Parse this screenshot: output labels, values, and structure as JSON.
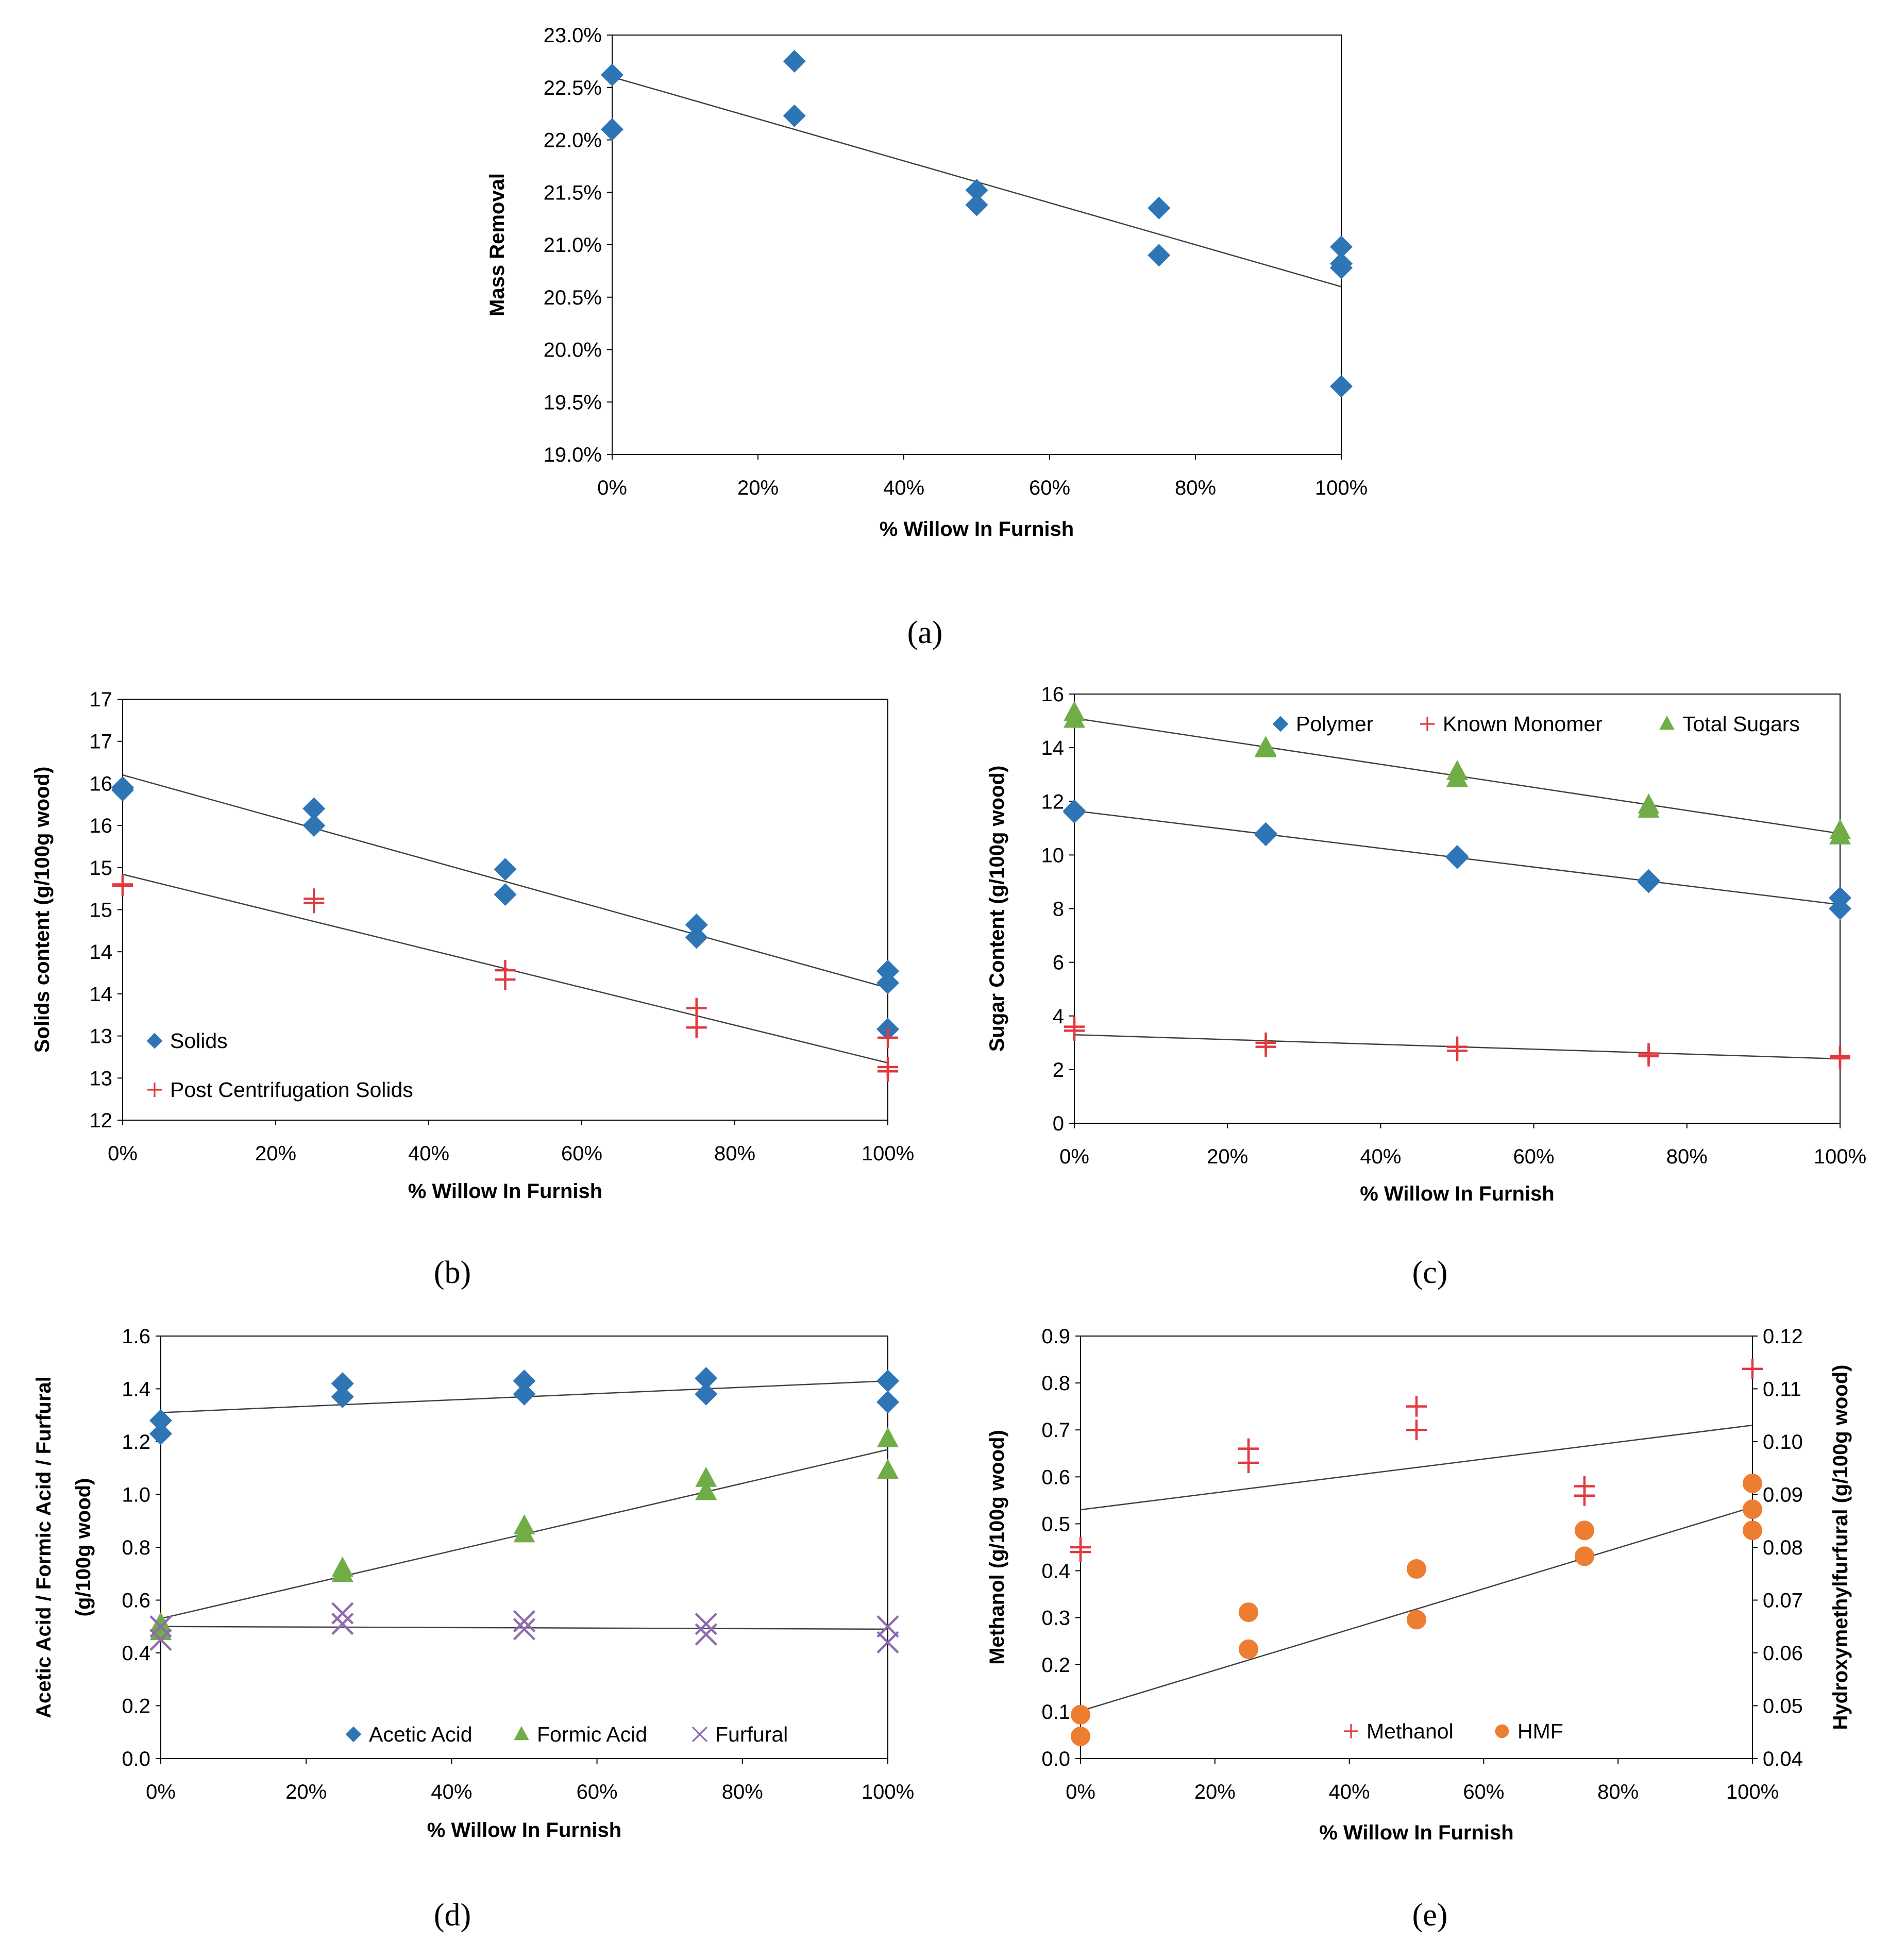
{
  "colors": {
    "blue": "#2E75B6",
    "red": "#E0393E",
    "green": "#70AD47",
    "purple": "#8E6AAE",
    "orange": "#ED7D31",
    "line": "#404040",
    "frame": "#000000"
  },
  "chart_data": [
    {
      "id": "a",
      "panel_label": "(a)",
      "type": "scatter",
      "xlabel": "% Willow In Furnish",
      "ylabel": "Mass Removal",
      "xlim": [
        0,
        100
      ],
      "ylim": [
        19.0,
        23.0
      ],
      "xticks": [
        0,
        20,
        40,
        60,
        80,
        100
      ],
      "xtick_labels": [
        "0%",
        "20%",
        "40%",
        "60%",
        "80%",
        "100%"
      ],
      "yticks": [
        19.0,
        19.5,
        20.0,
        20.5,
        21.0,
        21.5,
        22.0,
        22.5,
        23.0
      ],
      "ytick_labels": [
        "19.0%",
        "19.5%",
        "20.0%",
        "20.5%",
        "21.0%",
        "21.5%",
        "22.0%",
        "22.5%",
        "23.0%"
      ],
      "legend": [],
      "series": [
        {
          "name": "Mass Removal",
          "marker": "diamond",
          "color_key": "blue",
          "points": [
            [
              0,
              22.62
            ],
            [
              0,
              22.1
            ],
            [
              25,
              22.75
            ],
            [
              25,
              22.23
            ],
            [
              50,
              21.52
            ],
            [
              50,
              21.38
            ],
            [
              75,
              21.35
            ],
            [
              75,
              20.9
            ],
            [
              100,
              20.98
            ],
            [
              100,
              20.82
            ],
            [
              100,
              20.78
            ],
            [
              100,
              19.65
            ]
          ],
          "trend": [
            [
              0,
              22.6
            ],
            [
              100,
              20.6
            ]
          ]
        }
      ]
    },
    {
      "id": "b",
      "panel_label": "(b)",
      "type": "scatter",
      "xlabel": "% Willow In Furnish",
      "ylabel": "Solids content (g/100g wood)",
      "xlim": [
        0,
        100
      ],
      "ylim": [
        12,
        17
      ],
      "xticks": [
        0,
        20,
        40,
        60,
        80,
        100
      ],
      "xtick_labels": [
        "0%",
        "20%",
        "40%",
        "60%",
        "80%",
        "100%"
      ],
      "yticks": [
        12,
        12.5,
        13,
        13.5,
        14,
        14.5,
        15,
        15.5,
        16,
        16.5,
        17
      ],
      "ytick_labels": [
        "12",
        "13",
        "13",
        "14",
        "14",
        "15",
        "15",
        "16",
        "16",
        "17",
        "17"
      ],
      "legend": [
        "Solids",
        "Post Centrifugation Solids"
      ],
      "series": [
        {
          "name": "Solids",
          "marker": "diamond",
          "color_key": "blue",
          "points": [
            [
              0,
              15.95
            ],
            [
              0,
              15.92
            ],
            [
              25,
              15.7
            ],
            [
              25,
              15.5
            ],
            [
              50,
              14.98
            ],
            [
              50,
              14.68
            ],
            [
              75,
              14.32
            ],
            [
              75,
              14.17
            ],
            [
              100,
              13.77
            ],
            [
              100,
              13.63
            ],
            [
              100,
              13.08
            ]
          ],
          "trend": [
            [
              0,
              16.1
            ],
            [
              100,
              13.57
            ]
          ]
        },
        {
          "name": "Post Centrifugation Solids",
          "marker": "plus",
          "color_key": "red",
          "points": [
            [
              0,
              14.8
            ],
            [
              0,
              14.78
            ],
            [
              25,
              14.63
            ],
            [
              25,
              14.58
            ],
            [
              50,
              13.78
            ],
            [
              50,
              13.67
            ],
            [
              75,
              13.33
            ],
            [
              75,
              13.1
            ],
            [
              100,
              12.98
            ],
            [
              100,
              12.63
            ],
            [
              100,
              12.58
            ]
          ],
          "trend": [
            [
              0,
              14.92
            ],
            [
              100,
              12.68
            ]
          ]
        }
      ]
    },
    {
      "id": "c",
      "panel_label": "(c)",
      "type": "scatter",
      "xlabel": "% Willow In Furnish",
      "ylabel": "Sugar Content (g/100g wood)",
      "xlim": [
        0,
        100
      ],
      "ylim": [
        0,
        16
      ],
      "xticks": [
        0,
        20,
        40,
        60,
        80,
        100
      ],
      "xtick_labels": [
        "0%",
        "20%",
        "40%",
        "60%",
        "80%",
        "100%"
      ],
      "yticks": [
        0,
        2,
        4,
        6,
        8,
        10,
        12,
        14,
        16
      ],
      "ytick_labels": [
        "0",
        "2",
        "4",
        "6",
        "8",
        "10",
        "12",
        "14",
        "16"
      ],
      "legend": [
        "Polymer",
        "Known Monomer",
        "Total Sugars"
      ],
      "series": [
        {
          "name": "Polymer",
          "marker": "diamond",
          "color_key": "blue",
          "points": [
            [
              0,
              11.65
            ],
            [
              0,
              11.6
            ],
            [
              25,
              10.8
            ],
            [
              25,
              10.75
            ],
            [
              50,
              9.95
            ],
            [
              50,
              9.9
            ],
            [
              75,
              9.05
            ],
            [
              75,
              9.0
            ],
            [
              100,
              8.4
            ],
            [
              100,
              8.0
            ]
          ],
          "trend": [
            [
              0,
              11.65
            ],
            [
              100,
              8.15
            ]
          ]
        },
        {
          "name": "Known Monomer",
          "marker": "plus",
          "color_key": "red",
          "points": [
            [
              0,
              3.6
            ],
            [
              0,
              3.45
            ],
            [
              25,
              3.0
            ],
            [
              25,
              2.85
            ],
            [
              50,
              2.85
            ],
            [
              50,
              2.7
            ],
            [
              75,
              2.6
            ],
            [
              75,
              2.5
            ],
            [
              100,
              2.5
            ],
            [
              100,
              2.42
            ]
          ],
          "trend": [
            [
              0,
              3.3
            ],
            [
              100,
              2.4
            ]
          ]
        },
        {
          "name": "Total Sugars",
          "marker": "triangle",
          "color_key": "green",
          "points": [
            [
              0,
              15.3
            ],
            [
              0,
              15.05
            ],
            [
              25,
              14.0
            ],
            [
              25,
              13.95
            ],
            [
              50,
              13.1
            ],
            [
              50,
              12.85
            ],
            [
              75,
              11.85
            ],
            [
              75,
              11.7
            ],
            [
              100,
              10.9
            ],
            [
              100,
              10.7
            ]
          ],
          "trend": [
            [
              0,
              15.1
            ],
            [
              100,
              10.8
            ]
          ]
        }
      ]
    },
    {
      "id": "d",
      "panel_label": "(d)",
      "type": "scatter",
      "xlabel": "% Willow In Furnish",
      "ylabel": "Acetic Acid / Formic Acid / Furfural",
      "ylabel2": "(g/100g wood)",
      "xlim": [
        0,
        100
      ],
      "ylim": [
        0,
        1.6
      ],
      "xticks": [
        0,
        20,
        40,
        60,
        80,
        100
      ],
      "xtick_labels": [
        "0%",
        "20%",
        "40%",
        "60%",
        "80%",
        "100%"
      ],
      "yticks": [
        0,
        0.2,
        0.4,
        0.6,
        0.8,
        1.0,
        1.2,
        1.4,
        1.6
      ],
      "ytick_labels": [
        "0.0",
        "0.2",
        "0.4",
        "0.6",
        "0.8",
        "1.0",
        "1.2",
        "1.4",
        "1.6"
      ],
      "legend": [
        "Acetic Acid",
        "Formic Acid",
        "Furfural"
      ],
      "series": [
        {
          "name": "Acetic Acid",
          "marker": "diamond",
          "color_key": "blue",
          "points": [
            [
              0,
              1.28
            ],
            [
              0,
              1.23
            ],
            [
              25,
              1.42
            ],
            [
              25,
              1.37
            ],
            [
              50,
              1.43
            ],
            [
              50,
              1.38
            ],
            [
              75,
              1.44
            ],
            [
              75,
              1.38
            ],
            [
              100,
              1.43
            ],
            [
              100,
              1.35
            ]
          ],
          "trend": [
            [
              0,
              1.31
            ],
            [
              100,
              1.43
            ]
          ]
        },
        {
          "name": "Formic Acid",
          "marker": "triangle",
          "color_key": "green",
          "points": [
            [
              0,
              0.51
            ],
            [
              0,
              0.48
            ],
            [
              25,
              0.72
            ],
            [
              25,
              0.7
            ],
            [
              50,
              0.88
            ],
            [
              50,
              0.85
            ],
            [
              75,
              1.06
            ],
            [
              75,
              1.01
            ],
            [
              100,
              1.21
            ],
            [
              100,
              1.09
            ]
          ],
          "trend": [
            [
              0,
              0.53
            ],
            [
              100,
              1.17
            ]
          ]
        },
        {
          "name": "Furfural",
          "marker": "cross",
          "color_key": "purple",
          "points": [
            [
              0,
              0.5
            ],
            [
              0,
              0.45
            ],
            [
              25,
              0.55
            ],
            [
              25,
              0.51
            ],
            [
              50,
              0.52
            ],
            [
              50,
              0.49
            ],
            [
              75,
              0.51
            ],
            [
              75,
              0.47
            ],
            [
              100,
              0.5
            ],
            [
              100,
              0.44
            ]
          ],
          "trend": [
            [
              0,
              0.5
            ],
            [
              100,
              0.49
            ]
          ]
        }
      ]
    },
    {
      "id": "e",
      "panel_label": "(e)",
      "type": "scatter",
      "xlabel": "% Willow In Furnish",
      "ylabel": "Methanol (g/100g wood)",
      "ylabel_right": "Hydroxymethylfurfural (g/100g wood)",
      "xlim": [
        0,
        100
      ],
      "ylim": [
        0,
        0.9
      ],
      "ylim_right": [
        0.04,
        0.12
      ],
      "xticks": [
        0,
        20,
        40,
        60,
        80,
        100
      ],
      "xtick_labels": [
        "0%",
        "20%",
        "40%",
        "60%",
        "80%",
        "100%"
      ],
      "yticks": [
        0,
        0.1,
        0.2,
        0.3,
        0.4,
        0.5,
        0.6,
        0.7,
        0.8,
        0.9
      ],
      "ytick_labels": [
        "0.0",
        "0.1",
        "0.2",
        "0.3",
        "0.4",
        "0.5",
        "0.6",
        "0.7",
        "0.8",
        "0.9"
      ],
      "yticks_right": [
        0.04,
        0.05,
        0.06,
        0.07,
        0.08,
        0.09,
        0.1,
        0.11,
        0.12
      ],
      "ytick_labels_right": [
        "0.04",
        "0.05",
        "0.06",
        "0.07",
        "0.08",
        "0.09",
        "0.10",
        "0.11",
        "0.12"
      ],
      "legend": [
        "Methanol",
        "HMF"
      ],
      "series": [
        {
          "name": "Methanol",
          "marker": "plus",
          "color_key": "red",
          "axis": "left",
          "points": [
            [
              0,
              0.45
            ],
            [
              0,
              0.44
            ],
            [
              25,
              0.66
            ],
            [
              25,
              0.63
            ],
            [
              50,
              0.75
            ],
            [
              50,
              0.7
            ],
            [
              75,
              0.58
            ],
            [
              75,
              0.56
            ],
            [
              100,
              0.83
            ]
          ],
          "trend": [
            [
              0,
              0.53
            ],
            [
              100,
              0.71
            ]
          ]
        },
        {
          "name": "HMF",
          "marker": "circle",
          "color_key": "orange",
          "axis": "right",
          "points": [
            [
              0,
              0.0483
            ],
            [
              0,
              0.0442
            ],
            [
              25,
              0.0677
            ],
            [
              25,
              0.0607
            ],
            [
              50,
              0.0759
            ],
            [
              50,
              0.0663
            ],
            [
              75,
              0.0832
            ],
            [
              75,
              0.0783
            ],
            [
              100,
              0.0921
            ],
            [
              100,
              0.0872
            ],
            [
              100,
              0.0832
            ]
          ],
          "trend": [
            [
              0,
              0.049
            ],
            [
              100,
              0.0876
            ]
          ]
        }
      ]
    }
  ]
}
